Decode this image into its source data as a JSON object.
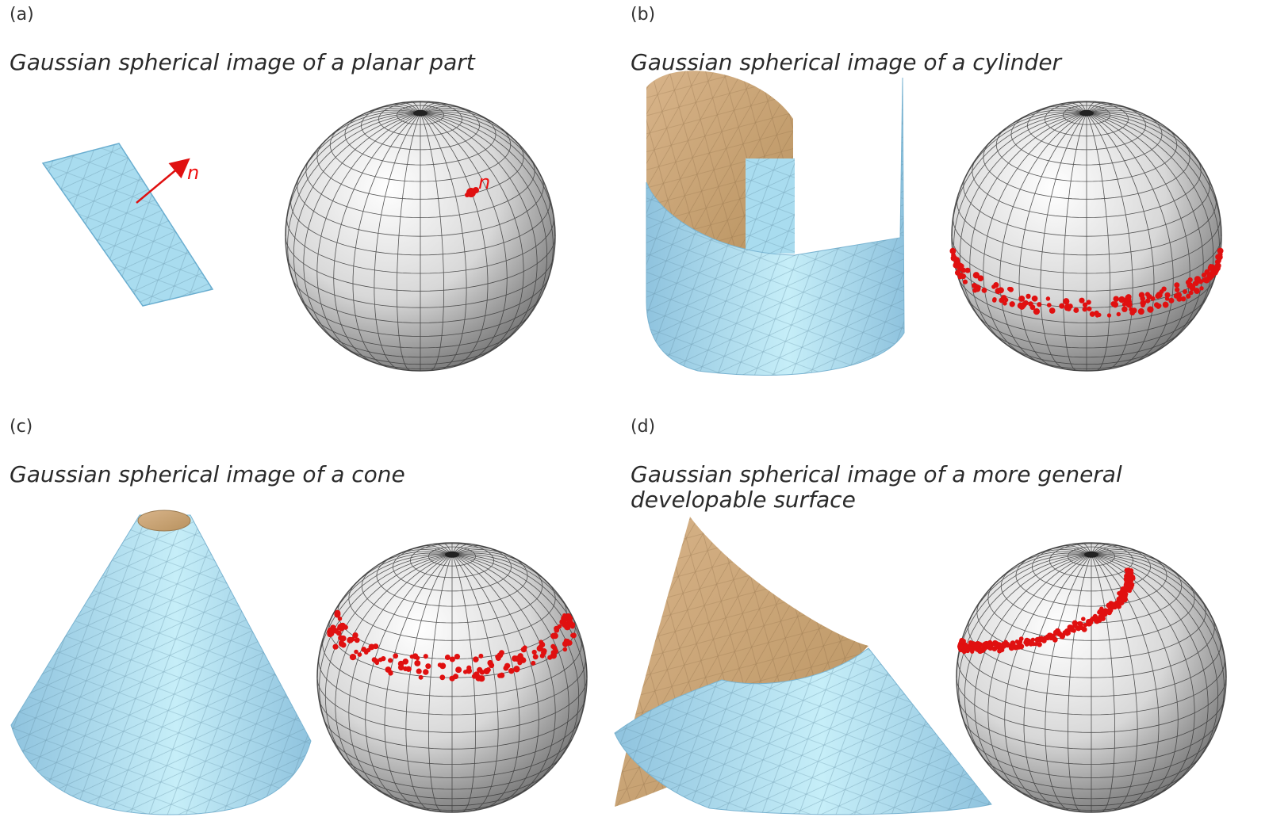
{
  "panels": [
    {
      "label": "(a)",
      "title": "Gaussian spherical image of a planar part",
      "normal_label": "n",
      "sphere_normal_label": "n"
    },
    {
      "label": "(b)",
      "title": "Gaussian spherical image of a cylinder"
    },
    {
      "label": "(c)",
      "title": "Gaussian spherical image of a cone"
    },
    {
      "label": "(d)",
      "title_line1": "Gaussian spherical image of a more general",
      "title_line2": "developable surface"
    }
  ],
  "colors": {
    "surface_outer": "#a9dcef",
    "surface_inner": "#c9a57a",
    "normals": "#e01010",
    "sphere_grid": "#444444"
  }
}
